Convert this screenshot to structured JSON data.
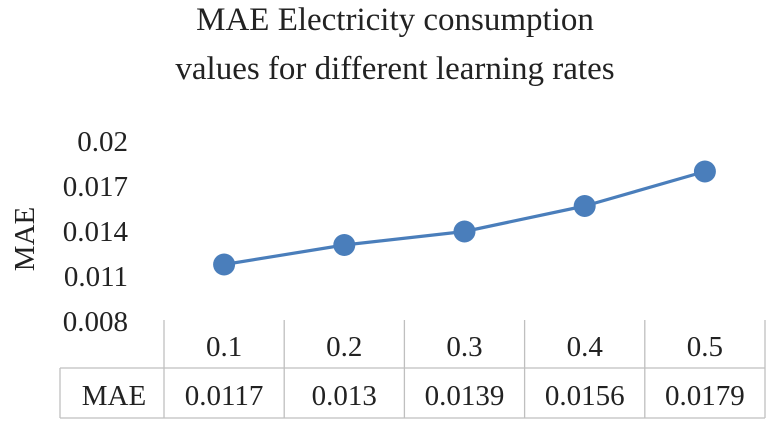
{
  "chart_data": {
    "type": "line",
    "title_lines": [
      "MAE Electricity consumption",
      "values for different learning rates"
    ],
    "ylabel": "MAE",
    "ylim": [
      0.008,
      0.02
    ],
    "yticks": [
      "0.02",
      "0.017",
      "0.014",
      "0.011",
      "0.008"
    ],
    "ytick_values": [
      0.02,
      0.017,
      0.014,
      0.011,
      0.008
    ],
    "categories": [
      "0.1",
      "0.2",
      "0.3",
      "0.4",
      "0.5"
    ],
    "series": [
      {
        "name": "MAE",
        "values": [
          0.0117,
          0.013,
          0.0139,
          0.0156,
          0.0179
        ],
        "value_labels": [
          "0.0117",
          "0.013",
          "0.0139",
          "0.0156",
          "0.0179"
        ],
        "color": "#4a7ebb"
      }
    ],
    "data_table": true,
    "grid": false,
    "legend": "none"
  },
  "colors": {
    "line": "#4a7ebb",
    "marker": "#4a7ebb",
    "table_border": "#bfbfbf",
    "text": "#222222"
  }
}
